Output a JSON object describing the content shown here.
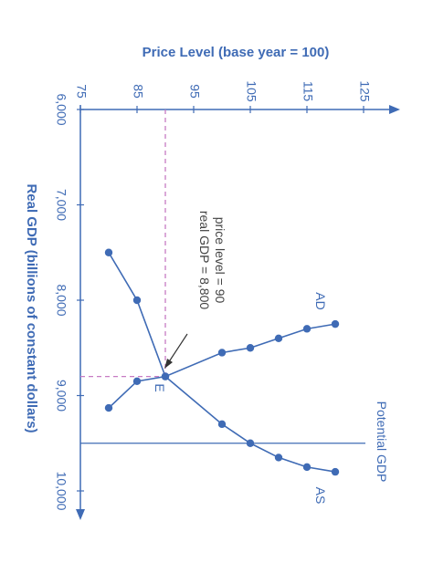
{
  "chart_data": {
    "type": "line",
    "orientation": "rotated-90-clockwise",
    "title": "",
    "xlabel": "Real GDP (billions of constant dollars)",
    "ylabel": "Price Level (base year = 100)",
    "x_axis": {
      "ticks": [
        6000,
        7000,
        8000,
        9000,
        10000
      ],
      "tick_labels": [
        "6,000",
        "7,000",
        "8,000",
        "9,000",
        "10,000"
      ],
      "range": [
        6000,
        10300
      ]
    },
    "y_axis": {
      "ticks": [
        75,
        85,
        95,
        105,
        115,
        125
      ],
      "tick_labels": [
        "75",
        "85",
        "95",
        "105",
        "115",
        "125"
      ],
      "range": [
        75,
        130
      ]
    },
    "series": [
      {
        "name": "AD",
        "color": "#3f6bb5",
        "x": [
          7500,
          8000,
          8800,
          8550,
          8500,
          8400,
          8300,
          8250
        ],
        "y": [
          80,
          85,
          90,
          100,
          105,
          110,
          115,
          120
        ]
      },
      {
        "name": "AS",
        "color": "#3f6bb5",
        "x": [
          9130,
          8850,
          8800,
          9300,
          9500,
          9650,
          9750,
          9800
        ],
        "y": [
          80,
          85,
          90,
          100,
          105,
          110,
          115,
          120
        ]
      }
    ],
    "vertical_line": {
      "label": "Potential GDP",
      "x": 9500
    },
    "equilibrium": {
      "label": "E",
      "x": 8800,
      "y": 90,
      "annotation": [
        "price level = 90",
        "real GDP = 8,800"
      ]
    },
    "grid": false,
    "colors": {
      "axis": "#3f6bb5",
      "guide": "#c77bc4"
    }
  }
}
